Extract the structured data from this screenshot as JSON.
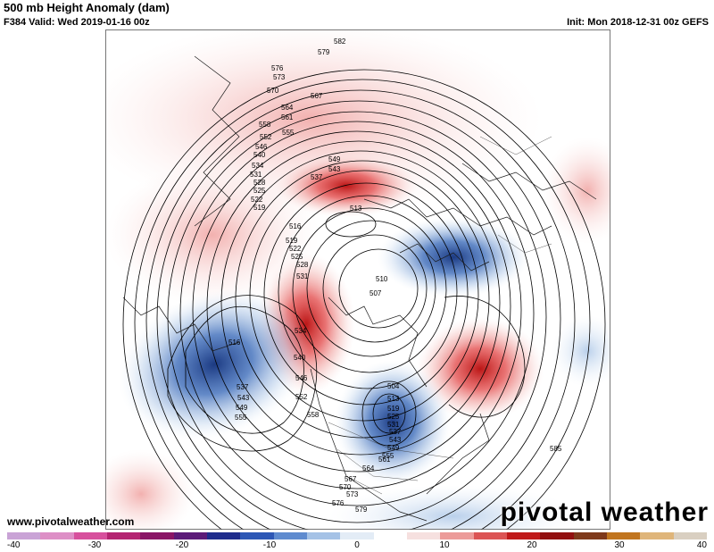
{
  "header": {
    "title": "500 mb Height Anomaly (dam)",
    "valid": "F384 Valid: Wed 2019-01-16 00z",
    "init": "Init: Mon 2018-12-31 00z GEFS"
  },
  "footer": {
    "site": "www.pivotalweather.com",
    "brand": "pivotal weather"
  },
  "colorbar": {
    "tick_labels": [
      "-40",
      "-30",
      "-20",
      "-10",
      "0",
      "10",
      "20",
      "30",
      "40"
    ],
    "colors": [
      "#c9a3d6",
      "#dd8fc6",
      "#d7509d",
      "#b42471",
      "#8a1566",
      "#5c1b78",
      "#1f2c8c",
      "#2d57b5",
      "#5f8bcf",
      "#a5c2e6",
      "#e3ecf6",
      "#ffffff",
      "#f6e0df",
      "#ec9b99",
      "#dc5454",
      "#c01a1a",
      "#921010",
      "#7f3a1c",
      "#c1751f",
      "#dfb57a",
      "#d9cfc1"
    ]
  },
  "map": {
    "anomalies": [
      {
        "kind": "positive",
        "color": "#d31d1d",
        "value": "+"
      },
      {
        "kind": "negative",
        "color": "#1f4fa8",
        "value": "-"
      }
    ],
    "contour_labels": [
      "582",
      "579",
      "576",
      "573",
      "570",
      "567",
      "564",
      "561",
      "558",
      "555",
      "552",
      "549",
      "546",
      "543",
      "540",
      "537",
      "534",
      "531",
      "528",
      "525",
      "522",
      "519",
      "516",
      "513",
      "510",
      "507",
      "504",
      "585"
    ]
  }
}
